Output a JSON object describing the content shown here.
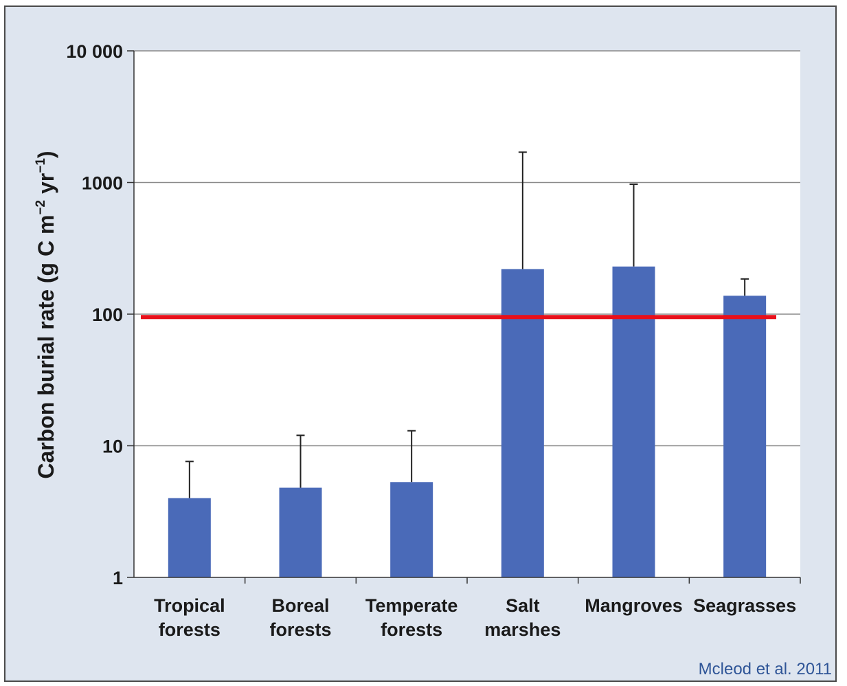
{
  "citation": "Mcleod et al. 2011",
  "colors": {
    "bar": "#4a6ab8",
    "reference_line": "#e8101a",
    "gridline": "#8a8a8a",
    "plot_background": "#ffffff",
    "frame_background": "#dee5ef"
  },
  "chart_data": {
    "type": "bar",
    "title": "",
    "xlabel": "",
    "ylabel": {
      "main": "Carbon burial rate (g C m",
      "exp1": "−2",
      "mid": " yr",
      "exp2": "−1",
      "end": ")"
    },
    "yscale": "log",
    "ylim": [
      1,
      10000
    ],
    "yticks": [
      {
        "value": 1,
        "label": "1"
      },
      {
        "value": 10,
        "label": "10"
      },
      {
        "value": 100,
        "label": "100"
      },
      {
        "value": 1000,
        "label": "1000"
      },
      {
        "value": 10000,
        "label": "10 000"
      }
    ],
    "grid": true,
    "categories": [
      [
        "Tropical",
        "forests"
      ],
      [
        "Boreal",
        "forests"
      ],
      [
        "Temperate",
        "forests"
      ],
      [
        "Salt",
        "marshes"
      ],
      [
        "Mangroves"
      ],
      [
        "Seagrasses"
      ]
    ],
    "values": [
      4.0,
      4.8,
      5.3,
      220,
      230,
      138
    ],
    "error_upper": [
      7.6,
      12,
      13,
      1700,
      970,
      185
    ],
    "reference_line": 95
  }
}
